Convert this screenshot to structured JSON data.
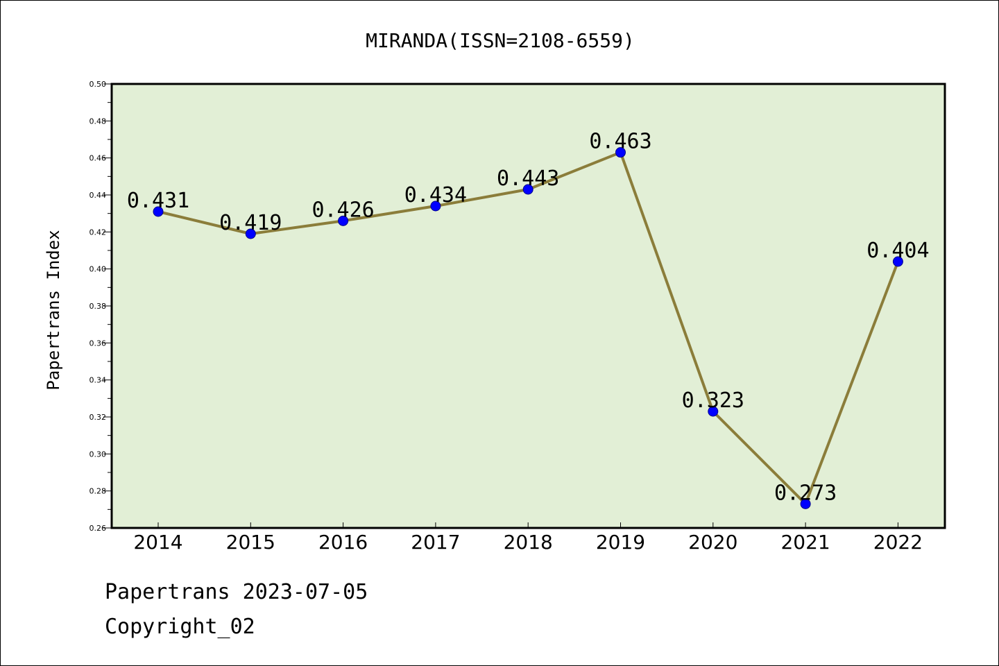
{
  "chart_data": {
    "type": "line",
    "title": "MIRANDA(ISSN=2108-6559)",
    "xlabel": "",
    "ylabel": "Papertrans Index",
    "categories": [
      "2014",
      "2015",
      "2016",
      "2017",
      "2018",
      "2019",
      "2020",
      "2021",
      "2022"
    ],
    "values": [
      0.431,
      0.419,
      0.426,
      0.434,
      0.443,
      0.463,
      0.323,
      0.273,
      0.404
    ],
    "data_labels": [
      "0.431",
      "0.419",
      "0.426",
      "0.434",
      "0.443",
      "0.463",
      "0.323",
      "0.273",
      "0.404"
    ],
    "ylim": [
      0.26,
      0.5
    ],
    "yticks": [
      "0.26",
      "0.28",
      "0.30",
      "0.32",
      "0.34",
      "0.36",
      "0.38",
      "0.40",
      "0.42",
      "0.44",
      "0.46",
      "0.48",
      "0.50"
    ],
    "grid": false,
    "colors": {
      "plot_background": "#e2efd6",
      "line": "#8b7d3a",
      "marker": "#0000ff"
    }
  },
  "footer": {
    "source": "Papertrans 2023-07-05",
    "copyright": "Copyright_02"
  }
}
